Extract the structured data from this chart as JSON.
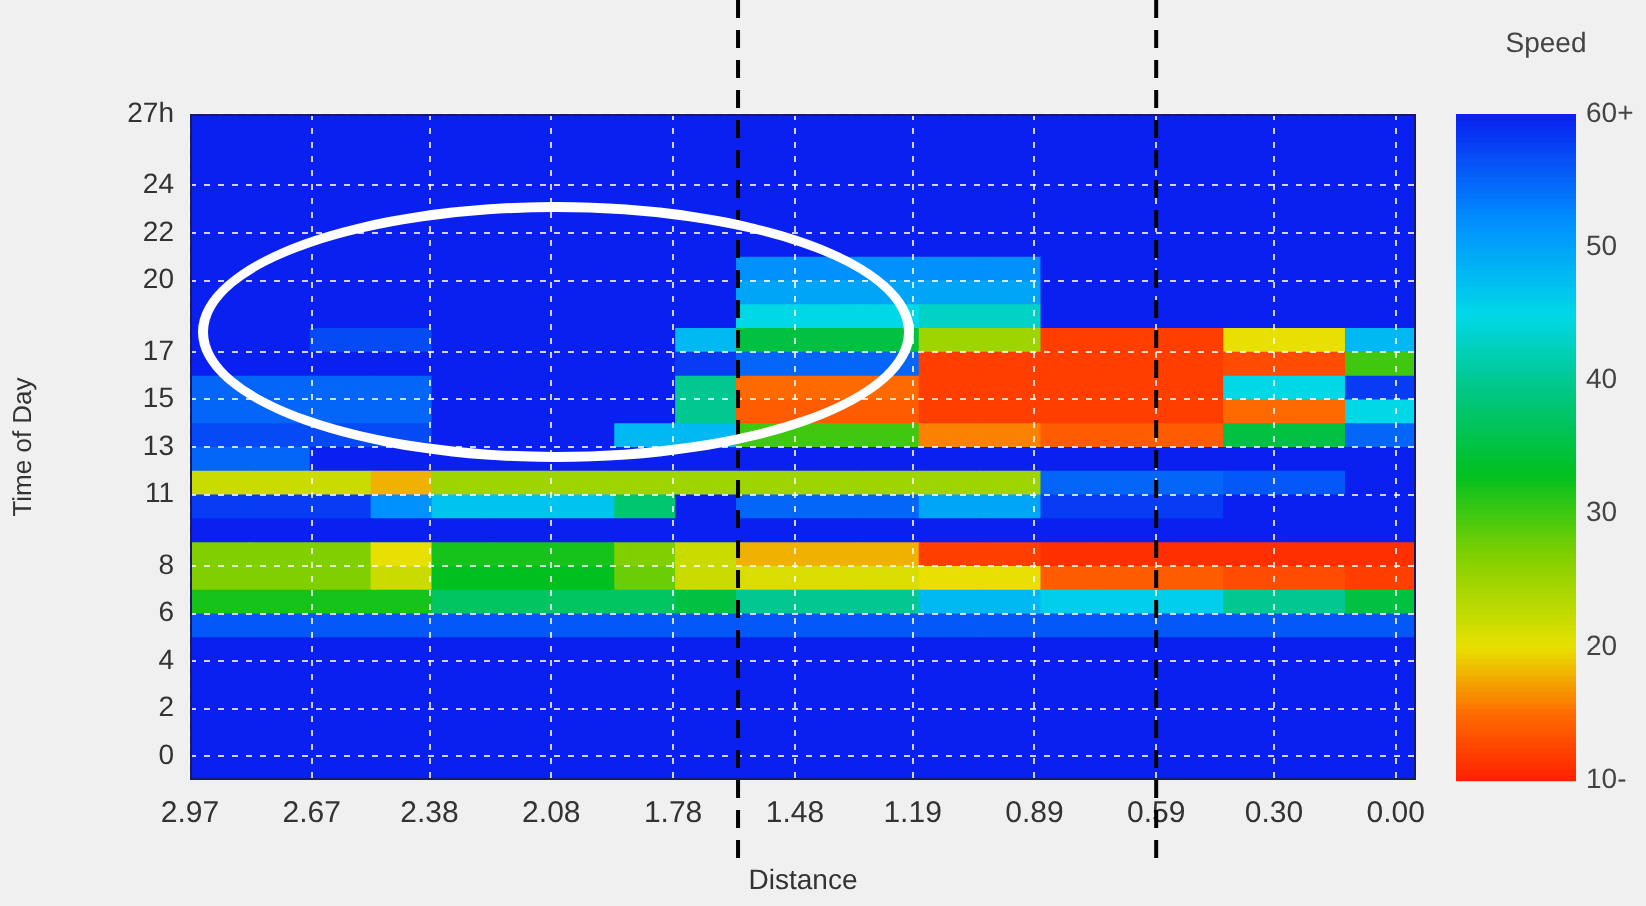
{
  "chart_data": {
    "type": "heatmap",
    "xlabel": "Distance",
    "ylabel": "Time of Day",
    "clabel": "Speed",
    "x": [
      2.9,
      2.75,
      2.6,
      2.45,
      2.3,
      2.15,
      2.0,
      1.85,
      1.7,
      1.55,
      1.4,
      1.25,
      1.1,
      0.95,
      0.8,
      0.65,
      0.5,
      0.35,
      0.2,
      0.05
    ],
    "y": [
      26.5,
      25.5,
      24.5,
      23.5,
      22.5,
      21.5,
      20.5,
      19.5,
      18.5,
      17.5,
      16.5,
      15.5,
      14.5,
      13.5,
      12.5,
      11.5,
      10.5,
      9.5,
      8.5,
      7.5,
      6.5,
      5.5,
      4.5,
      3.5,
      2.5,
      1.5,
      0.5,
      -0.5
    ],
    "xlim": [
      2.97,
      -0.05
    ],
    "xticks": [
      2.97,
      2.67,
      2.38,
      2.08,
      1.78,
      1.48,
      1.19,
      0.89,
      0.59,
      {
        "value": 0.3,
        "label": "0.30"
      },
      {
        "value": 0,
        "label": "0.00"
      }
    ],
    "ylim": [
      -1,
      27
    ],
    "yticks": [
      0,
      2,
      4,
      6,
      8,
      11,
      13,
      15,
      17,
      20,
      22,
      24,
      {
        "value": 27,
        "label": "27h"
      }
    ],
    "clim": [
      10,
      60
    ],
    "cticks": [
      {
        "value": 10,
        "label": "10-"
      },
      20,
      30,
      40,
      50,
      {
        "value": 60,
        "label": "60+"
      }
    ],
    "grid": true,
    "ref_lines": [
      {
        "axis": "x",
        "value": 1.62,
        "color": "#000000",
        "line_style": "dashed"
      },
      {
        "axis": "x",
        "value": 0.59,
        "color": "#000000",
        "line_style": "dashed"
      }
    ],
    "cells": [
      [
        60,
        60,
        60,
        60,
        60,
        60,
        60,
        60,
        60,
        60,
        60,
        60,
        60,
        60,
        60,
        60,
        60,
        60,
        60,
        60
      ],
      [
        60,
        60,
        60,
        60,
        60,
        60,
        60,
        60,
        60,
        60,
        60,
        60,
        60,
        60,
        60,
        60,
        60,
        60,
        60,
        60
      ],
      [
        60,
        60,
        60,
        60,
        60,
        60,
        60,
        60,
        60,
        60,
        60,
        60,
        60,
        60,
        60,
        60,
        60,
        60,
        60,
        60
      ],
      [
        60,
        60,
        60,
        60,
        60,
        60,
        60,
        60,
        60,
        60,
        60,
        60,
        60,
        60,
        60,
        60,
        60,
        60,
        60,
        60
      ],
      [
        60,
        60,
        60,
        60,
        60,
        60,
        60,
        60,
        60,
        60,
        60,
        60,
        60,
        60,
        60,
        60,
        60,
        60,
        60,
        60
      ],
      [
        60,
        60,
        60,
        60,
        60,
        60,
        60,
        60,
        60,
        60,
        60,
        60,
        60,
        60,
        60,
        60,
        60,
        60,
        60,
        60
      ],
      [
        60,
        60,
        60,
        60,
        60,
        60,
        60,
        60,
        60,
        52,
        52,
        52,
        52,
        52,
        60,
        60,
        60,
        60,
        60,
        60
      ],
      [
        60,
        60,
        60,
        60,
        60,
        60,
        60,
        60,
        60,
        50,
        50,
        50,
        50,
        50,
        60,
        60,
        60,
        60,
        60,
        60
      ],
      [
        60,
        60,
        60,
        60,
        60,
        60,
        60,
        60,
        60,
        45,
        45,
        45,
        43,
        43,
        60,
        60,
        60,
        60,
        60,
        60
      ],
      [
        60,
        60,
        57,
        57,
        60,
        60,
        60,
        60,
        48,
        35,
        35,
        35,
        25,
        25,
        12,
        12,
        12,
        20,
        20,
        48
      ],
      [
        60,
        60,
        60,
        60,
        60,
        60,
        60,
        60,
        58,
        55,
        55,
        55,
        12,
        12,
        12,
        12,
        12,
        13,
        13,
        30
      ],
      [
        55,
        55,
        55,
        55,
        60,
        60,
        60,
        60,
        40,
        15,
        15,
        15,
        12,
        12,
        12,
        12,
        12,
        45,
        45,
        58
      ],
      [
        55,
        55,
        55,
        55,
        60,
        60,
        60,
        60,
        40,
        14,
        14,
        14,
        12,
        12,
        12,
        12,
        12,
        15,
        15,
        45
      ],
      [
        57,
        57,
        57,
        57,
        60,
        60,
        60,
        48,
        48,
        30,
        30,
        30,
        16,
        16,
        14,
        14,
        14,
        35,
        35,
        55
      ],
      [
        55,
        55,
        60,
        60,
        60,
        60,
        60,
        60,
        60,
        60,
        60,
        60,
        60,
        60,
        60,
        60,
        60,
        60,
        60,
        60
      ],
      [
        22,
        22,
        22,
        18,
        25,
        25,
        25,
        25,
        25,
        25,
        25,
        25,
        25,
        25,
        55,
        55,
        55,
        56,
        56,
        60
      ],
      [
        58,
        58,
        58,
        52,
        47,
        47,
        47,
        38,
        60,
        55,
        55,
        55,
        50,
        50,
        58,
        58,
        58,
        60,
        60,
        60
      ],
      [
        60,
        60,
        60,
        60,
        60,
        60,
        60,
        60,
        60,
        60,
        60,
        60,
        60,
        60,
        60,
        60,
        60,
        60,
        60,
        60
      ],
      [
        27,
        27,
        27,
        20,
        32,
        32,
        32,
        27,
        22,
        18,
        18,
        18,
        12,
        12,
        11,
        11,
        11,
        11,
        11,
        11
      ],
      [
        27,
        27,
        27,
        22,
        33,
        33,
        33,
        28,
        22,
        21,
        21,
        21,
        20,
        20,
        14,
        14,
        14,
        13,
        13,
        12
      ],
      [
        32,
        32,
        32,
        32,
        37,
        37,
        37,
        37,
        35,
        40,
        40,
        40,
        48,
        48,
        46,
        46,
        46,
        40,
        40,
        35
      ],
      [
        56,
        56,
        56,
        56,
        56,
        56,
        56,
        56,
        56,
        56,
        56,
        56,
        56,
        56,
        56,
        56,
        56,
        56,
        56,
        56
      ],
      [
        60,
        60,
        60,
        60,
        60,
        60,
        60,
        60,
        60,
        60,
        60,
        60,
        60,
        60,
        60,
        60,
        60,
        60,
        60,
        60
      ],
      [
        60,
        60,
        60,
        60,
        60,
        60,
        60,
        60,
        60,
        60,
        60,
        60,
        60,
        60,
        60,
        60,
        60,
        60,
        60,
        60
      ],
      [
        60,
        60,
        60,
        60,
        60,
        60,
        60,
        60,
        60,
        60,
        60,
        60,
        60,
        60,
        60,
        60,
        60,
        60,
        60,
        60
      ],
      [
        60,
        60,
        60,
        60,
        60,
        60,
        60,
        60,
        60,
        60,
        60,
        60,
        60,
        60,
        60,
        60,
        60,
        60,
        60,
        60
      ],
      [
        60,
        60,
        60,
        60,
        60,
        60,
        60,
        60,
        60,
        60,
        60,
        60,
        60,
        60,
        60,
        60,
        60,
        60,
        60,
        60
      ],
      [
        60,
        60,
        60,
        60,
        60,
        60,
        60,
        60,
        60,
        60,
        60,
        60,
        60,
        60,
        60,
        60,
        60,
        60,
        60,
        60
      ]
    ]
  }
}
